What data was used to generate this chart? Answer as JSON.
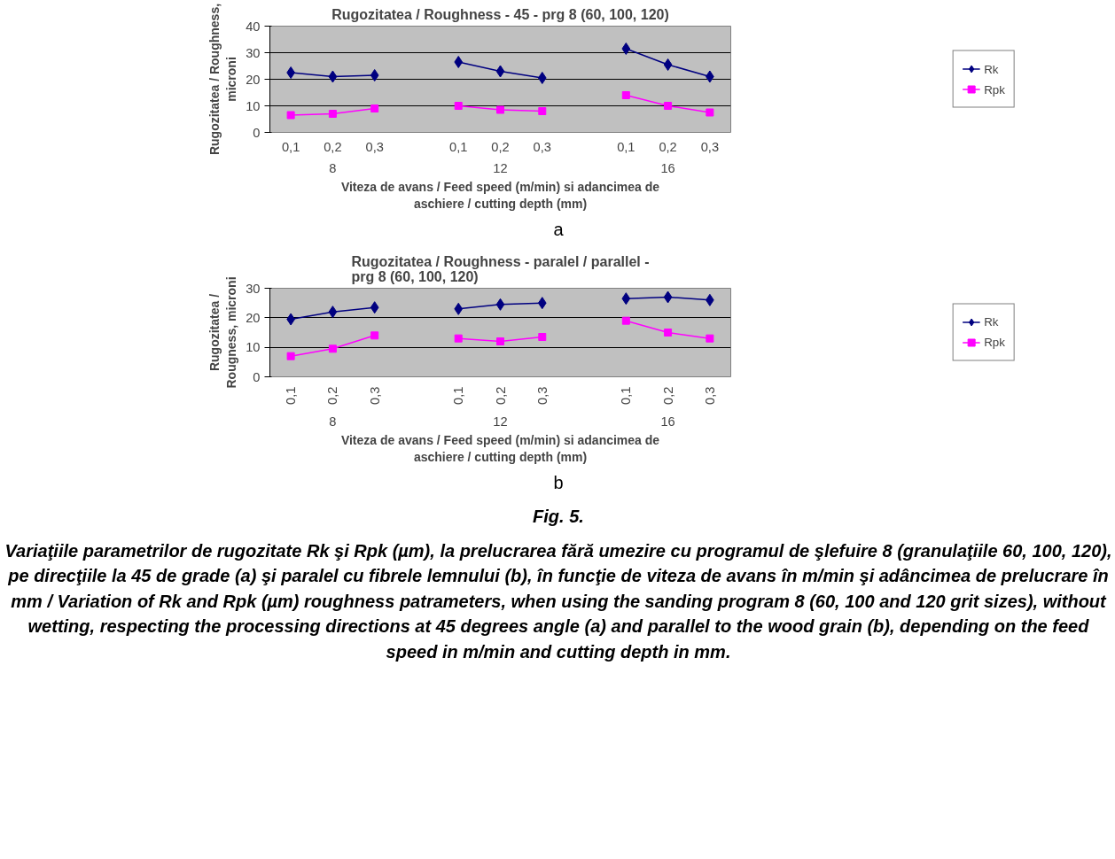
{
  "chart_data": [
    {
      "type": "line",
      "title": "Rugozitatea / Roughness - 45 - prg 8 (60, 100, 120)",
      "xlabel": "Viteza de avans / Feed speed (m/min) si adancimea de\naschiere / cutting depth (mm)",
      "ylabel": "Rugozitatea / Roughness,\nmicroni",
      "categories": [
        "0,1",
        "0,2",
        "0,3",
        null,
        "0,1",
        "0,2",
        "0,3",
        null,
        "0,1",
        "0,2",
        "0,3"
      ],
      "series": [
        {
          "name": "Rk",
          "color": "#000080",
          "marker": "diamond",
          "values": [
            22.5,
            21,
            21.5,
            null,
            26.5,
            23,
            20.5,
            null,
            31.5,
            25.5,
            21
          ]
        },
        {
          "name": "Rpk",
          "color": "#ff00ff",
          "marker": "square",
          "values": [
            6.5,
            7,
            9,
            null,
            10,
            8.5,
            8,
            null,
            14,
            10,
            7.5
          ]
        }
      ],
      "ylim": [
        0,
        40
      ],
      "yticks": [
        0,
        10,
        20,
        30,
        40
      ],
      "grid": "y",
      "legend": "right",
      "annotations": [
        "8",
        "12",
        "16",
        "a"
      ]
    },
    {
      "type": "line",
      "title": "Rugozitatea / Roughness - paralel / parallel -\nprg 8 (60, 100, 120)",
      "xlabel": "Viteza de avans / Feed speed (m/min) si adancimea de\naschiere / cutting depth (mm)",
      "ylabel": "Rugozitatea /\nRougness, microni",
      "categories": [
        "0,1",
        "0,2",
        "0,3",
        null,
        "0,1",
        "0,2",
        "0,3",
        null,
        "0,1",
        "0,2",
        "0,3"
      ],
      "series": [
        {
          "name": "Rk",
          "color": "#000080",
          "marker": "diamond",
          "values": [
            19.5,
            22,
            23.5,
            null,
            23,
            24.5,
            25,
            null,
            26.5,
            27,
            26
          ]
        },
        {
          "name": "Rpk",
          "color": "#ff00ff",
          "marker": "square",
          "values": [
            7,
            9.5,
            14,
            null,
            13,
            12,
            13.5,
            null,
            19,
            15,
            13
          ]
        }
      ],
      "ylim": [
        0,
        30
      ],
      "yticks": [
        0,
        10,
        20,
        30
      ],
      "grid": "y",
      "legend": "right",
      "annotations": [
        "8",
        "12",
        "16",
        "b",
        "Fig. 5.",
        "Variaţiile parametrilor de rugozitate Rk şi Rpk  (µm), la prelucrarea fără umezire cu programul de şlefuire 8 (granulaţiile 60, 100, 120), pe direcţiile la 45 de grade (a) şi paralel cu fibrele lemnului (b), în funcţie de viteza de avans în m/min şi adâncimea de prelucrare în mm / Variation of Rk and Rpk  (µm) roughness patrameters, when using the sanding program 8 (60, 100 and 120 grit sizes), without wetting, respecting the processing directions at 45 degrees angle (a) and parallel to the wood grain (b), depending on the feed speed in m/min and cutting depth in mm."
      ]
    }
  ]
}
